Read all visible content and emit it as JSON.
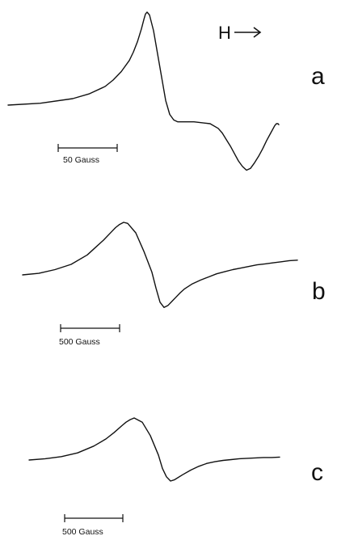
{
  "field_label": "H",
  "chart_data": [
    {
      "type": "line",
      "panel": "a",
      "scale_bar_label": "50 Gauss",
      "series": [
        {
          "x": [
            0,
            40,
            80,
            100,
            120,
            130,
            140,
            150,
            155,
            160,
            165,
            168,
            170,
            172,
            175,
            180,
            185,
            190,
            195,
            200,
            205,
            210,
            215,
            230,
            250,
            260,
            265,
            270,
            275,
            280,
            285,
            290,
            295,
            300,
            305,
            310,
            315,
            320,
            325,
            330,
            332,
            334,
            335
          ],
          "y": [
            0,
            0.02,
            0.07,
            0.12,
            0.2,
            0.27,
            0.36,
            0.48,
            0.57,
            0.68,
            0.82,
            0.92,
            0.98,
            1.0,
            0.97,
            0.8,
            0.55,
            0.3,
            0.05,
            -0.1,
            -0.16,
            -0.18,
            -0.18,
            -0.18,
            -0.2,
            -0.25,
            -0.3,
            -0.37,
            -0.44,
            -0.52,
            -0.6,
            -0.66,
            -0.7,
            -0.68,
            -0.62,
            -0.55,
            -0.47,
            -0.38,
            -0.3,
            -0.22,
            -0.2,
            -0.2,
            -0.21
          ]
        }
      ]
    },
    {
      "type": "line",
      "panel": "b",
      "scale_bar_label": "500 Gauss",
      "series": [
        {
          "x": [
            0,
            20,
            40,
            60,
            80,
            90,
            100,
            110,
            115,
            120,
            125,
            130,
            140,
            150,
            160,
            165,
            170,
            175,
            180,
            185,
            190,
            195,
            200,
            210,
            220,
            230,
            240,
            250,
            260,
            270,
            280,
            290,
            300,
            310,
            320,
            330,
            340
          ],
          "y": [
            0,
            0.03,
            0.1,
            0.2,
            0.38,
            0.52,
            0.66,
            0.82,
            0.9,
            0.96,
            1.0,
            0.98,
            0.8,
            0.45,
            0.05,
            -0.25,
            -0.52,
            -0.62,
            -0.58,
            -0.5,
            -0.42,
            -0.34,
            -0.27,
            -0.17,
            -0.1,
            -0.04,
            0.02,
            0.06,
            0.1,
            0.13,
            0.16,
            0.19,
            0.21,
            0.23,
            0.25,
            0.27,
            0.28
          ]
        }
      ]
    },
    {
      "type": "line",
      "panel": "c",
      "scale_bar_label": "500 Gauss",
      "series": [
        {
          "x": [
            0,
            20,
            40,
            60,
            80,
            95,
            105,
            115,
            120,
            125,
            130,
            140,
            150,
            160,
            165,
            170,
            175,
            180,
            190,
            200,
            210,
            220,
            230,
            240,
            250,
            260,
            270,
            280,
            290,
            300,
            310
          ],
          "y": [
            0,
            0.03,
            0.08,
            0.17,
            0.33,
            0.5,
            0.65,
            0.82,
            0.9,
            0.96,
            1.0,
            0.9,
            0.58,
            0.12,
            -0.2,
            -0.4,
            -0.5,
            -0.47,
            -0.35,
            -0.24,
            -0.15,
            -0.08,
            -0.04,
            -0.01,
            0.01,
            0.03,
            0.04,
            0.05,
            0.06,
            0.06,
            0.07
          ]
        }
      ]
    }
  ]
}
